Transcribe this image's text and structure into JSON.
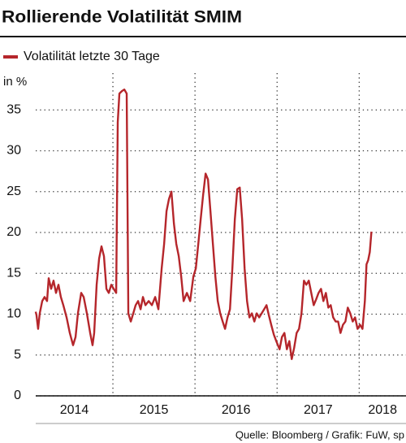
{
  "chart_data": {
    "type": "line",
    "title": "Rollierende Volatilität SMIM",
    "y_label": "in %",
    "source": "Quelle: Bloomberg / Grafik: FuW, sp",
    "xlim": [
      2014.06,
      2018.57
    ],
    "xticks": [
      2014,
      2015,
      2016,
      2017,
      2018
    ],
    "ylim": [
      0,
      39.5
    ],
    "yticks": [
      0,
      5,
      10,
      15,
      20,
      25,
      30,
      35
    ],
    "grid": true,
    "legend": "top-left",
    "series": [
      {
        "name": "Volatilität letzte 30 Tage",
        "color": "#b5262b",
        "x": [
          2014.059,
          2014.069,
          2014.089,
          2014.109,
          2014.139,
          2014.168,
          2014.198,
          2014.218,
          2014.248,
          2014.277,
          2014.307,
          2014.337,
          2014.366,
          2014.396,
          2014.436,
          2014.475,
          2014.515,
          2014.545,
          2014.574,
          2014.614,
          2014.644,
          2014.683,
          2014.723,
          2014.752,
          2014.772,
          2014.802,
          2014.832,
          2014.861,
          2014.891,
          2014.921,
          2014.95,
          2014.98,
          2015.01,
          2015.04,
          2015.059,
          2015.079,
          2015.109,
          2015.139,
          2015.168,
          2015.188,
          2015.218,
          2015.248,
          2015.277,
          2015.307,
          2015.337,
          2015.366,
          2015.396,
          2015.436,
          2015.475,
          2015.515,
          2015.554,
          2015.594,
          2015.624,
          2015.653,
          2015.683,
          2015.713,
          2015.743,
          2015.772,
          2015.802,
          2015.832,
          2015.861,
          2015.901,
          2015.941,
          2015.98,
          2016.01,
          2016.04,
          2016.069,
          2016.099,
          2016.129,
          2016.158,
          2016.188,
          2016.218,
          2016.248,
          2016.277,
          2016.307,
          2016.337,
          2016.366,
          2016.396,
          2016.426,
          2016.455,
          2016.485,
          2016.515,
          2016.545,
          2016.574,
          2016.604,
          2016.634,
          2016.663,
          2016.693,
          2016.723,
          2016.752,
          2016.782,
          2016.812,
          2016.842,
          2016.871,
          2016.901,
          2016.931,
          2016.96,
          2016.99,
          2017.03,
          2017.059,
          2017.089,
          2017.119,
          2017.149,
          2017.178,
          2017.208,
          2017.238,
          2017.267,
          2017.297,
          2017.327,
          2017.356,
          2017.386,
          2017.416,
          2017.446,
          2017.475,
          2017.505,
          2017.535,
          2017.564,
          2017.594,
          2017.624,
          2017.653,
          2017.683,
          2017.713,
          2017.743,
          2017.772,
          2017.802,
          2017.832,
          2017.861,
          2017.891,
          2017.921,
          2017.95,
          2017.98,
          2018.01,
          2018.04,
          2018.069,
          2018.089,
          2018.109,
          2018.129,
          2018.149
        ],
        "values": [
          10.3,
          9.9,
          8.2,
          10.1,
          11.6,
          12.1,
          11.6,
          14.4,
          13.1,
          14.1,
          12.6,
          13.6,
          12.1,
          11.1,
          9.6,
          7.7,
          6.2,
          7.2,
          10.1,
          12.6,
          12.1,
          10.1,
          7.7,
          6.2,
          7.7,
          13.6,
          16.8,
          18.3,
          17.1,
          13.1,
          12.6,
          13.6,
          13.1,
          12.6,
          33.5,
          37.0,
          37.3,
          37.5,
          37.0,
          10.1,
          9.1,
          10.1,
          11.1,
          11.6,
          10.6,
          12.1,
          11.1,
          11.6,
          11.1,
          12.1,
          10.6,
          15.6,
          18.6,
          22.6,
          24.1,
          25.0,
          21.1,
          18.6,
          17.1,
          14.6,
          11.6,
          12.6,
          11.6,
          14.6,
          15.6,
          18.6,
          21.6,
          24.6,
          27.2,
          26.5,
          22.6,
          18.6,
          14.6,
          11.6,
          10.1,
          9.1,
          8.2,
          9.6,
          10.6,
          15.6,
          21.6,
          25.3,
          25.5,
          21.6,
          15.6,
          11.6,
          9.6,
          10.1,
          9.1,
          10.1,
          9.6,
          10.1,
          10.6,
          11.1,
          9.8,
          8.6,
          7.5,
          6.7,
          5.7,
          7.2,
          7.7,
          5.7,
          6.7,
          4.5,
          5.9,
          7.7,
          8.2,
          10.1,
          14.1,
          13.6,
          14.1,
          12.6,
          11.1,
          11.8,
          12.6,
          13.1,
          11.6,
          12.6,
          10.8,
          11.1,
          9.6,
          9.1,
          9.1,
          7.7,
          8.7,
          9.1,
          10.8,
          10.1,
          9.1,
          9.6,
          8.2,
          8.7,
          8.2,
          11.6,
          16.1,
          16.6,
          17.6,
          20.1
        ]
      }
    ]
  }
}
